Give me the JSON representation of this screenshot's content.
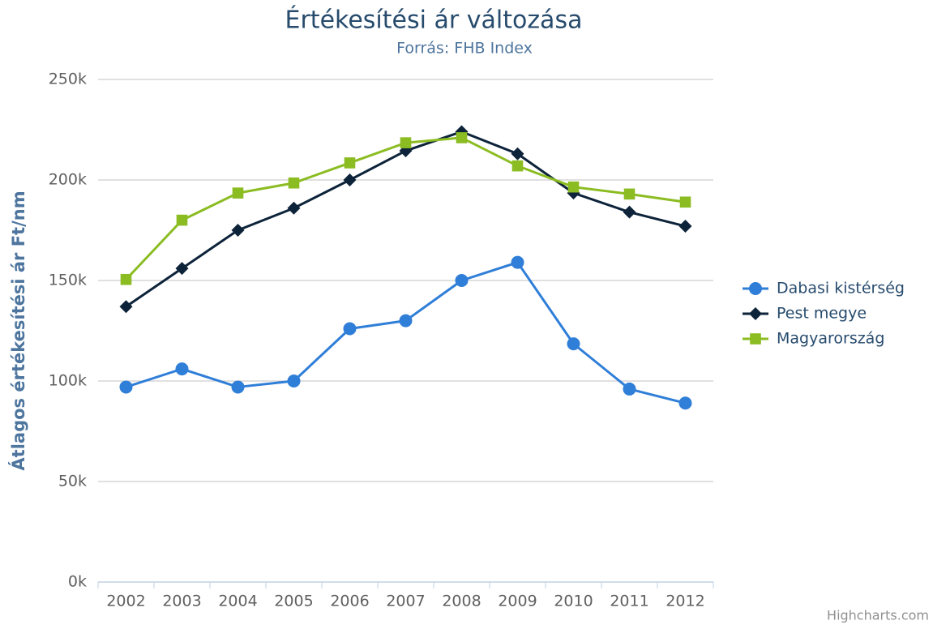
{
  "chart_data": {
    "type": "line",
    "title": "Értékesítési ár változása",
    "subtitle": "Forrás: FHB Index",
    "y_label": "Átlagos értékesítési ár Ft/nm",
    "credits": "Highcharts.com",
    "categories": [
      "2002",
      "2003",
      "2004",
      "2005",
      "2006",
      "2007",
      "2008",
      "2009",
      "2010",
      "2011",
      "2012"
    ],
    "series": [
      {
        "name": "Dabasi kistérség",
        "color": "#2f7ed8",
        "marker": "circle",
        "values": [
          97000,
          106000,
          97000,
          100000,
          126000,
          130000,
          150000,
          159000,
          118500,
          96000,
          89000
        ]
      },
      {
        "name": "Pest megye",
        "color": "#0d233a",
        "marker": "diamond",
        "values": [
          137000,
          156000,
          175000,
          186000,
          200000,
          214500,
          224000,
          213000,
          193500,
          184000,
          177000
        ]
      },
      {
        "name": "Magyarország",
        "color": "#8bbc21",
        "marker": "square",
        "values": [
          150500,
          180000,
          193500,
          198500,
          208500,
          218500,
          221000,
          207000,
          196500,
          193000,
          189000
        ]
      }
    ],
    "ylim": [
      0,
      250000
    ],
    "yticks": [
      {
        "value": 0,
        "label": "0k"
      },
      {
        "value": 50000,
        "label": "50k"
      },
      {
        "value": 100000,
        "label": "100k"
      },
      {
        "value": 150000,
        "label": "150k"
      },
      {
        "value": 200000,
        "label": "200k"
      },
      {
        "value": 250000,
        "label": "250k"
      }
    ],
    "grid": true,
    "legend": "right"
  }
}
